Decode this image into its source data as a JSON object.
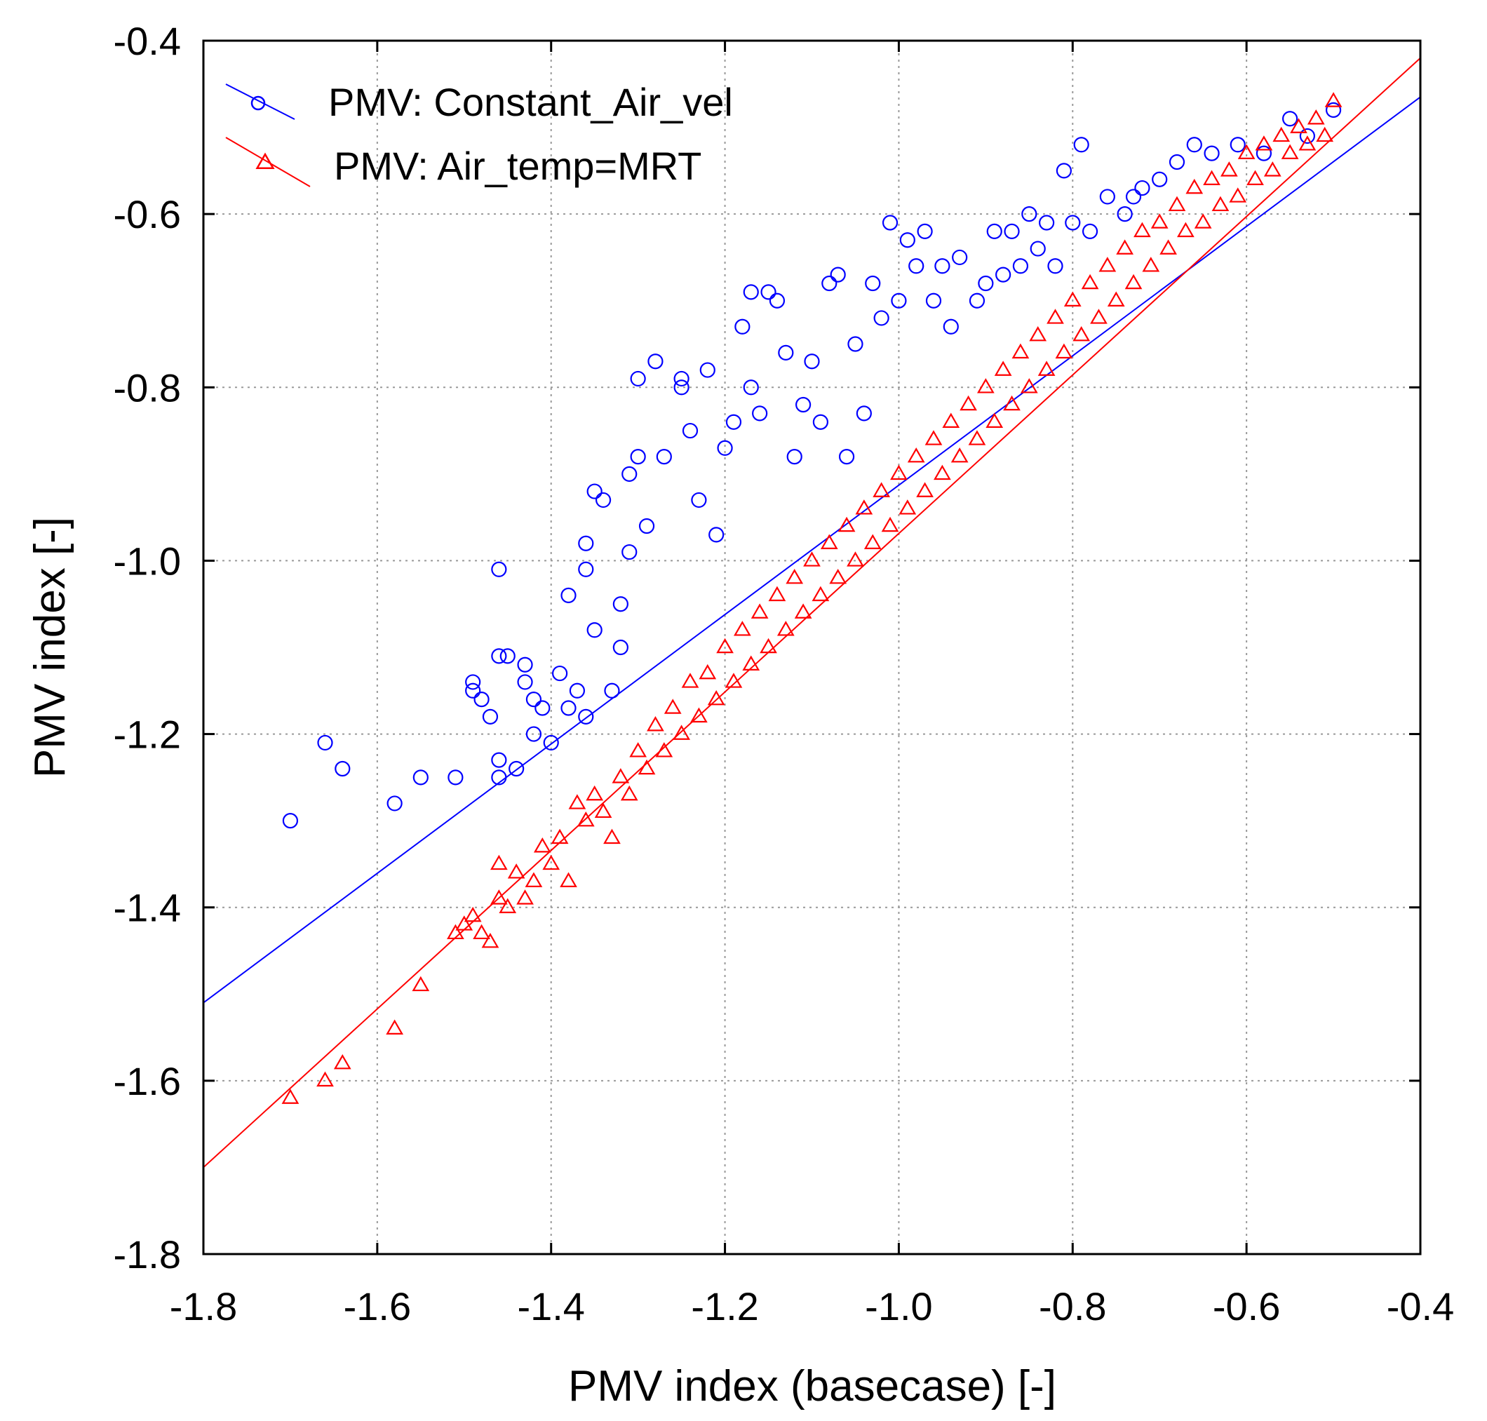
{
  "chart_data": {
    "type": "scatter",
    "xlabel": "PMV index (basecase) [-]",
    "ylabel": "PMV index [-]",
    "xlim": [
      -1.8,
      -0.4
    ],
    "ylim": [
      -1.8,
      -0.4
    ],
    "xticks": [
      -1.8,
      -1.6,
      -1.4,
      -1.2,
      -1.0,
      -0.8,
      -0.6,
      -0.4
    ],
    "yticks": [
      -1.8,
      -1.6,
      -1.4,
      -1.2,
      -1.0,
      -0.8,
      -0.6,
      -0.4
    ],
    "xtick_labels": [
      "-1.8",
      "-1.6",
      "-1.4",
      "-1.2",
      "-1.0",
      "-0.8",
      "-0.6",
      "-0.4"
    ],
    "ytick_labels": [
      "-1.8",
      "-1.6",
      "-1.4",
      "-1.2",
      "-1.0",
      "-0.8",
      "-0.6",
      "-0.4"
    ],
    "grid": true,
    "legend_position": "top-left",
    "series": [
      {
        "name": "PMV: Constant_Air_vel",
        "color": "#0000ff",
        "marker": "circle",
        "fit_line": {
          "x": [
            -1.8,
            -0.4
          ],
          "y": [
            -1.51,
            -0.465
          ]
        },
        "points": [
          [
            -1.7,
            -1.3
          ],
          [
            -1.66,
            -1.21
          ],
          [
            -1.64,
            -1.24
          ],
          [
            -1.58,
            -1.28
          ],
          [
            -1.55,
            -1.25
          ],
          [
            -1.51,
            -1.25
          ],
          [
            -1.49,
            -1.14
          ],
          [
            -1.49,
            -1.15
          ],
          [
            -1.48,
            -1.16
          ],
          [
            -1.47,
            -1.18
          ],
          [
            -1.46,
            -1.11
          ],
          [
            -1.46,
            -1.23
          ],
          [
            -1.46,
            -1.25
          ],
          [
            -1.46,
            -1.01
          ],
          [
            -1.45,
            -1.11
          ],
          [
            -1.44,
            -1.24
          ],
          [
            -1.43,
            -1.12
          ],
          [
            -1.43,
            -1.14
          ],
          [
            -1.42,
            -1.16
          ],
          [
            -1.42,
            -1.2
          ],
          [
            -1.41,
            -1.17
          ],
          [
            -1.4,
            -1.21
          ],
          [
            -1.39,
            -1.13
          ],
          [
            -1.38,
            -1.04
          ],
          [
            -1.38,
            -1.17
          ],
          [
            -1.37,
            -1.15
          ],
          [
            -1.36,
            -0.98
          ],
          [
            -1.36,
            -1.01
          ],
          [
            -1.36,
            -1.18
          ],
          [
            -1.35,
            -0.92
          ],
          [
            -1.35,
            -1.08
          ],
          [
            -1.34,
            -0.93
          ],
          [
            -1.33,
            -1.15
          ],
          [
            -1.32,
            -1.05
          ],
          [
            -1.32,
            -1.1
          ],
          [
            -1.31,
            -0.9
          ],
          [
            -1.31,
            -0.99
          ],
          [
            -1.3,
            -0.79
          ],
          [
            -1.3,
            -0.88
          ],
          [
            -1.29,
            -0.96
          ],
          [
            -1.28,
            -0.77
          ],
          [
            -1.27,
            -0.88
          ],
          [
            -1.25,
            -0.79
          ],
          [
            -1.25,
            -0.8
          ],
          [
            -1.24,
            -0.85
          ],
          [
            -1.23,
            -0.93
          ],
          [
            -1.22,
            -0.78
          ],
          [
            -1.21,
            -0.97
          ],
          [
            -1.2,
            -0.87
          ],
          [
            -1.19,
            -0.84
          ],
          [
            -1.18,
            -0.73
          ],
          [
            -1.17,
            -0.69
          ],
          [
            -1.17,
            -0.8
          ],
          [
            -1.16,
            -0.83
          ],
          [
            -1.15,
            -0.69
          ],
          [
            -1.14,
            -0.7
          ],
          [
            -1.13,
            -0.76
          ],
          [
            -1.12,
            -0.88
          ],
          [
            -1.11,
            -0.82
          ],
          [
            -1.1,
            -0.77
          ],
          [
            -1.09,
            -0.84
          ],
          [
            -1.08,
            -0.68
          ],
          [
            -1.07,
            -0.67
          ],
          [
            -1.06,
            -0.88
          ],
          [
            -1.05,
            -0.75
          ],
          [
            -1.04,
            -0.83
          ],
          [
            -1.03,
            -0.68
          ],
          [
            -1.02,
            -0.72
          ],
          [
            -1.01,
            -0.61
          ],
          [
            -1.0,
            -0.7
          ],
          [
            -0.99,
            -0.63
          ],
          [
            -0.98,
            -0.66
          ],
          [
            -0.97,
            -0.62
          ],
          [
            -0.96,
            -0.7
          ],
          [
            -0.95,
            -0.66
          ],
          [
            -0.94,
            -0.73
          ],
          [
            -0.93,
            -0.65
          ],
          [
            -0.91,
            -0.7
          ],
          [
            -0.9,
            -0.68
          ],
          [
            -0.89,
            -0.62
          ],
          [
            -0.88,
            -0.67
          ],
          [
            -0.87,
            -0.62
          ],
          [
            -0.86,
            -0.66
          ],
          [
            -0.85,
            -0.6
          ],
          [
            -0.84,
            -0.64
          ],
          [
            -0.83,
            -0.61
          ],
          [
            -0.82,
            -0.66
          ],
          [
            -0.81,
            -0.55
          ],
          [
            -0.8,
            -0.61
          ],
          [
            -0.79,
            -0.52
          ],
          [
            -0.78,
            -0.62
          ],
          [
            -0.76,
            -0.58
          ],
          [
            -0.74,
            -0.6
          ],
          [
            -0.73,
            -0.58
          ],
          [
            -0.72,
            -0.57
          ],
          [
            -0.7,
            -0.56
          ],
          [
            -0.68,
            -0.54
          ],
          [
            -0.66,
            -0.52
          ],
          [
            -0.64,
            -0.53
          ],
          [
            -0.61,
            -0.52
          ],
          [
            -0.58,
            -0.53
          ],
          [
            -0.55,
            -0.49
          ],
          [
            -0.53,
            -0.51
          ],
          [
            -0.5,
            -0.48
          ]
        ]
      },
      {
        "name": "PMV: Air_temp=MRT",
        "color": "#ff0000",
        "marker": "triangle",
        "fit_line": {
          "x": [
            -1.8,
            -0.4
          ],
          "y": [
            -1.7,
            -0.42
          ]
        },
        "points": [
          [
            -1.7,
            -1.62
          ],
          [
            -1.66,
            -1.6
          ],
          [
            -1.64,
            -1.58
          ],
          [
            -1.58,
            -1.54
          ],
          [
            -1.55,
            -1.49
          ],
          [
            -1.51,
            -1.43
          ],
          [
            -1.5,
            -1.42
          ],
          [
            -1.49,
            -1.41
          ],
          [
            -1.48,
            -1.43
          ],
          [
            -1.47,
            -1.44
          ],
          [
            -1.46,
            -1.39
          ],
          [
            -1.46,
            -1.35
          ],
          [
            -1.45,
            -1.4
          ],
          [
            -1.44,
            -1.36
          ],
          [
            -1.43,
            -1.39
          ],
          [
            -1.42,
            -1.37
          ],
          [
            -1.41,
            -1.33
          ],
          [
            -1.4,
            -1.35
          ],
          [
            -1.39,
            -1.32
          ],
          [
            -1.38,
            -1.37
          ],
          [
            -1.37,
            -1.28
          ],
          [
            -1.36,
            -1.3
          ],
          [
            -1.35,
            -1.27
          ],
          [
            -1.34,
            -1.29
          ],
          [
            -1.33,
            -1.32
          ],
          [
            -1.32,
            -1.25
          ],
          [
            -1.31,
            -1.27
          ],
          [
            -1.3,
            -1.22
          ],
          [
            -1.29,
            -1.24
          ],
          [
            -1.28,
            -1.19
          ],
          [
            -1.27,
            -1.22
          ],
          [
            -1.26,
            -1.17
          ],
          [
            -1.25,
            -1.2
          ],
          [
            -1.24,
            -1.14
          ],
          [
            -1.23,
            -1.18
          ],
          [
            -1.22,
            -1.13
          ],
          [
            -1.21,
            -1.16
          ],
          [
            -1.2,
            -1.1
          ],
          [
            -1.19,
            -1.14
          ],
          [
            -1.18,
            -1.08
          ],
          [
            -1.17,
            -1.12
          ],
          [
            -1.16,
            -1.06
          ],
          [
            -1.15,
            -1.1
          ],
          [
            -1.14,
            -1.04
          ],
          [
            -1.13,
            -1.08
          ],
          [
            -1.12,
            -1.02
          ],
          [
            -1.11,
            -1.06
          ],
          [
            -1.1,
            -1.0
          ],
          [
            -1.09,
            -1.04
          ],
          [
            -1.08,
            -0.98
          ],
          [
            -1.07,
            -1.02
          ],
          [
            -1.06,
            -0.96
          ],
          [
            -1.05,
            -1.0
          ],
          [
            -1.04,
            -0.94
          ],
          [
            -1.03,
            -0.98
          ],
          [
            -1.02,
            -0.92
          ],
          [
            -1.01,
            -0.96
          ],
          [
            -1.0,
            -0.9
          ],
          [
            -0.99,
            -0.94
          ],
          [
            -0.98,
            -0.88
          ],
          [
            -0.97,
            -0.92
          ],
          [
            -0.96,
            -0.86
          ],
          [
            -0.95,
            -0.9
          ],
          [
            -0.94,
            -0.84
          ],
          [
            -0.93,
            -0.88
          ],
          [
            -0.92,
            -0.82
          ],
          [
            -0.91,
            -0.86
          ],
          [
            -0.9,
            -0.8
          ],
          [
            -0.89,
            -0.84
          ],
          [
            -0.88,
            -0.78
          ],
          [
            -0.87,
            -0.82
          ],
          [
            -0.86,
            -0.76
          ],
          [
            -0.85,
            -0.8
          ],
          [
            -0.84,
            -0.74
          ],
          [
            -0.83,
            -0.78
          ],
          [
            -0.82,
            -0.72
          ],
          [
            -0.81,
            -0.76
          ],
          [
            -0.8,
            -0.7
          ],
          [
            -0.79,
            -0.74
          ],
          [
            -0.78,
            -0.68
          ],
          [
            -0.77,
            -0.72
          ],
          [
            -0.76,
            -0.66
          ],
          [
            -0.75,
            -0.7
          ],
          [
            -0.74,
            -0.64
          ],
          [
            -0.73,
            -0.68
          ],
          [
            -0.72,
            -0.62
          ],
          [
            -0.71,
            -0.66
          ],
          [
            -0.7,
            -0.61
          ],
          [
            -0.69,
            -0.64
          ],
          [
            -0.68,
            -0.59
          ],
          [
            -0.67,
            -0.62
          ],
          [
            -0.66,
            -0.57
          ],
          [
            -0.65,
            -0.61
          ],
          [
            -0.64,
            -0.56
          ],
          [
            -0.63,
            -0.59
          ],
          [
            -0.62,
            -0.55
          ],
          [
            -0.61,
            -0.58
          ],
          [
            -0.6,
            -0.53
          ],
          [
            -0.59,
            -0.56
          ],
          [
            -0.58,
            -0.52
          ],
          [
            -0.57,
            -0.55
          ],
          [
            -0.56,
            -0.51
          ],
          [
            -0.55,
            -0.53
          ],
          [
            -0.54,
            -0.5
          ],
          [
            -0.53,
            -0.52
          ],
          [
            -0.52,
            -0.49
          ],
          [
            -0.51,
            -0.51
          ],
          [
            -0.5,
            -0.47
          ]
        ]
      }
    ]
  }
}
